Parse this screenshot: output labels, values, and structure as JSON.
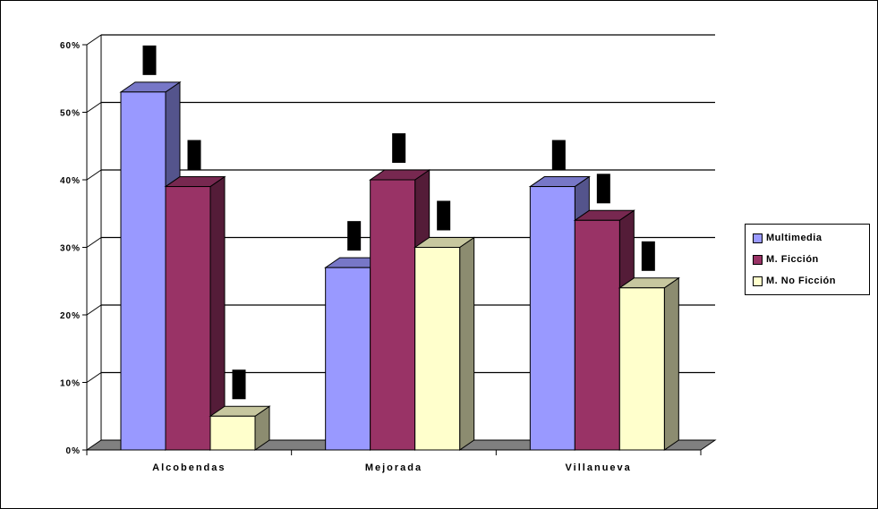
{
  "chart_data": {
    "type": "bar",
    "categories": [
      "Alcobendas",
      "Mejorada",
      "Villanueva"
    ],
    "series": [
      {
        "name": "Multimedia",
        "color": "#9999ff",
        "values": [
          53,
          27,
          39
        ]
      },
      {
        "name": "M. Ficción",
        "color": "#993366",
        "values": [
          39,
          40,
          34
        ]
      },
      {
        "name": "M. No Ficción",
        "color": "#ffffcc",
        "values": [
          5,
          30,
          24
        ]
      }
    ],
    "y_ticks": [
      "0%",
      "10%",
      "20%",
      "30%",
      "40%",
      "50%",
      "60%"
    ],
    "ylim": [
      0,
      60
    ],
    "grid": true,
    "legend_position": "right",
    "title": "",
    "xlabel": "",
    "ylabel": ""
  }
}
